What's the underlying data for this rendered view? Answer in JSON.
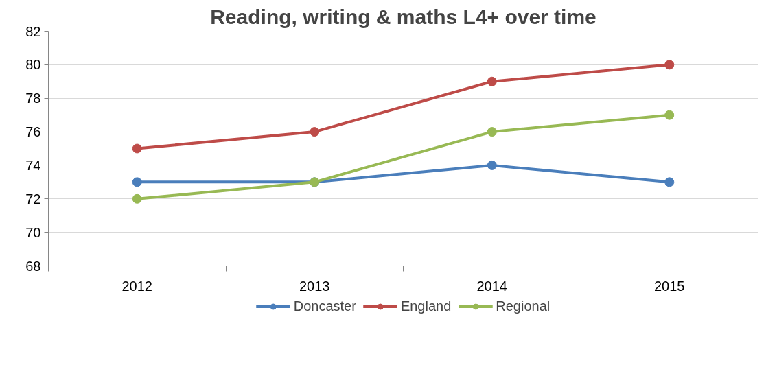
{
  "chart_data": {
    "type": "line",
    "title": "Reading, writing & maths L4+ over time",
    "categories": [
      "2012",
      "2013",
      "2014",
      "2015"
    ],
    "series": [
      {
        "name": "Doncaster",
        "color": "#4a7ebb",
        "values": [
          73,
          73,
          74,
          73
        ]
      },
      {
        "name": "England",
        "color": "#be4b48",
        "values": [
          75,
          76,
          79,
          80
        ]
      },
      {
        "name": "Regional",
        "color": "#98b954",
        "values": [
          72,
          73,
          76,
          77
        ]
      }
    ],
    "ylim": [
      68,
      82
    ],
    "yticks": [
      68,
      70,
      72,
      74,
      76,
      78,
      80,
      82
    ],
    "grid": "y",
    "legend": "bottom",
    "marker": "circle",
    "line_style": "solid"
  }
}
